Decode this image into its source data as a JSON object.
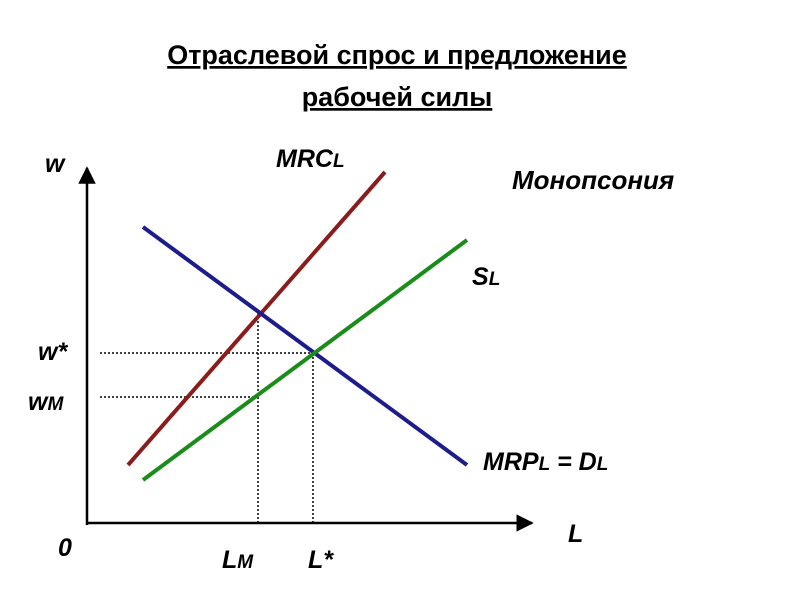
{
  "title": [
    "Отраслевой спрос и предложение",
    "рабочей силы"
  ],
  "labels": {
    "w": "w",
    "mrc": {
      "main": "MRC",
      "sub": "L"
    },
    "monopsony": "Монопсония",
    "supply": {
      "main": "S",
      "sub": "L"
    },
    "w_star": "w*",
    "w_m": {
      "main": "w",
      "sub": "M"
    },
    "mrp": {
      "main": "MRP",
      "sub": "L",
      "eq": " = D",
      "sub2": "L"
    },
    "origin": "0",
    "l_m": {
      "main": "L",
      "sub": "M"
    },
    "l_star": "L*",
    "l_axis": "L"
  }
}
